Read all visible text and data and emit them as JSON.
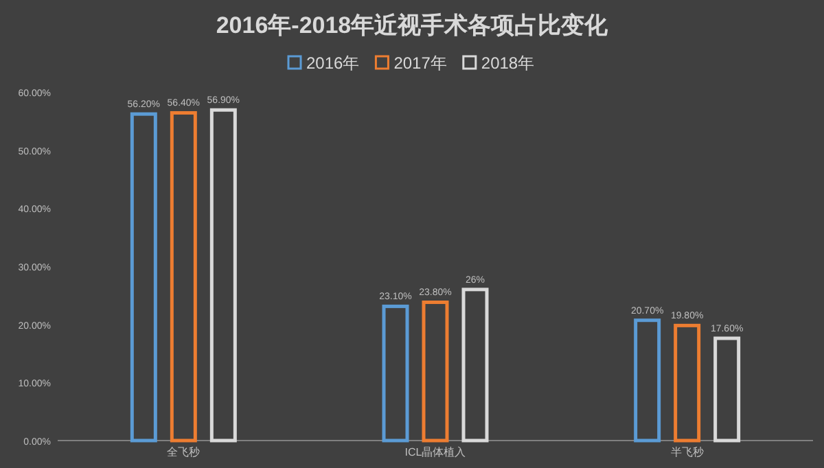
{
  "chart_data": {
    "type": "bar",
    "title": "2016年-2018年近视手术各项占比变化",
    "categories": [
      "全飞秒",
      "ICL晶体植入",
      "半飞秒"
    ],
    "series": [
      {
        "name": "2016年",
        "color": "#5b9bd5",
        "values": [
          56.2,
          23.1,
          20.7
        ],
        "value_labels": [
          "56.20%",
          "23.10%",
          "20.70%"
        ]
      },
      {
        "name": "2017年",
        "color": "#ed7d31",
        "values": [
          56.4,
          23.8,
          19.8
        ],
        "value_labels": [
          "56.40%",
          "23.80%",
          "19.80%"
        ]
      },
      {
        "name": "2018年",
        "color": "#d9d9d9",
        "values": [
          56.9,
          26,
          17.6
        ],
        "value_labels": [
          "56.90%",
          "26%",
          "17.60%"
        ]
      }
    ],
    "ylim": [
      0,
      60
    ],
    "yticks": [
      {
        "value": 0,
        "label": "0.00%"
      },
      {
        "value": 10,
        "label": "10.00%"
      },
      {
        "value": 20,
        "label": "20.00%"
      },
      {
        "value": 30,
        "label": "30.00%"
      },
      {
        "value": 40,
        "label": "40.00%"
      },
      {
        "value": 50,
        "label": "50.00%"
      },
      {
        "value": 60,
        "label": "60.00%"
      }
    ],
    "legend": "top"
  }
}
